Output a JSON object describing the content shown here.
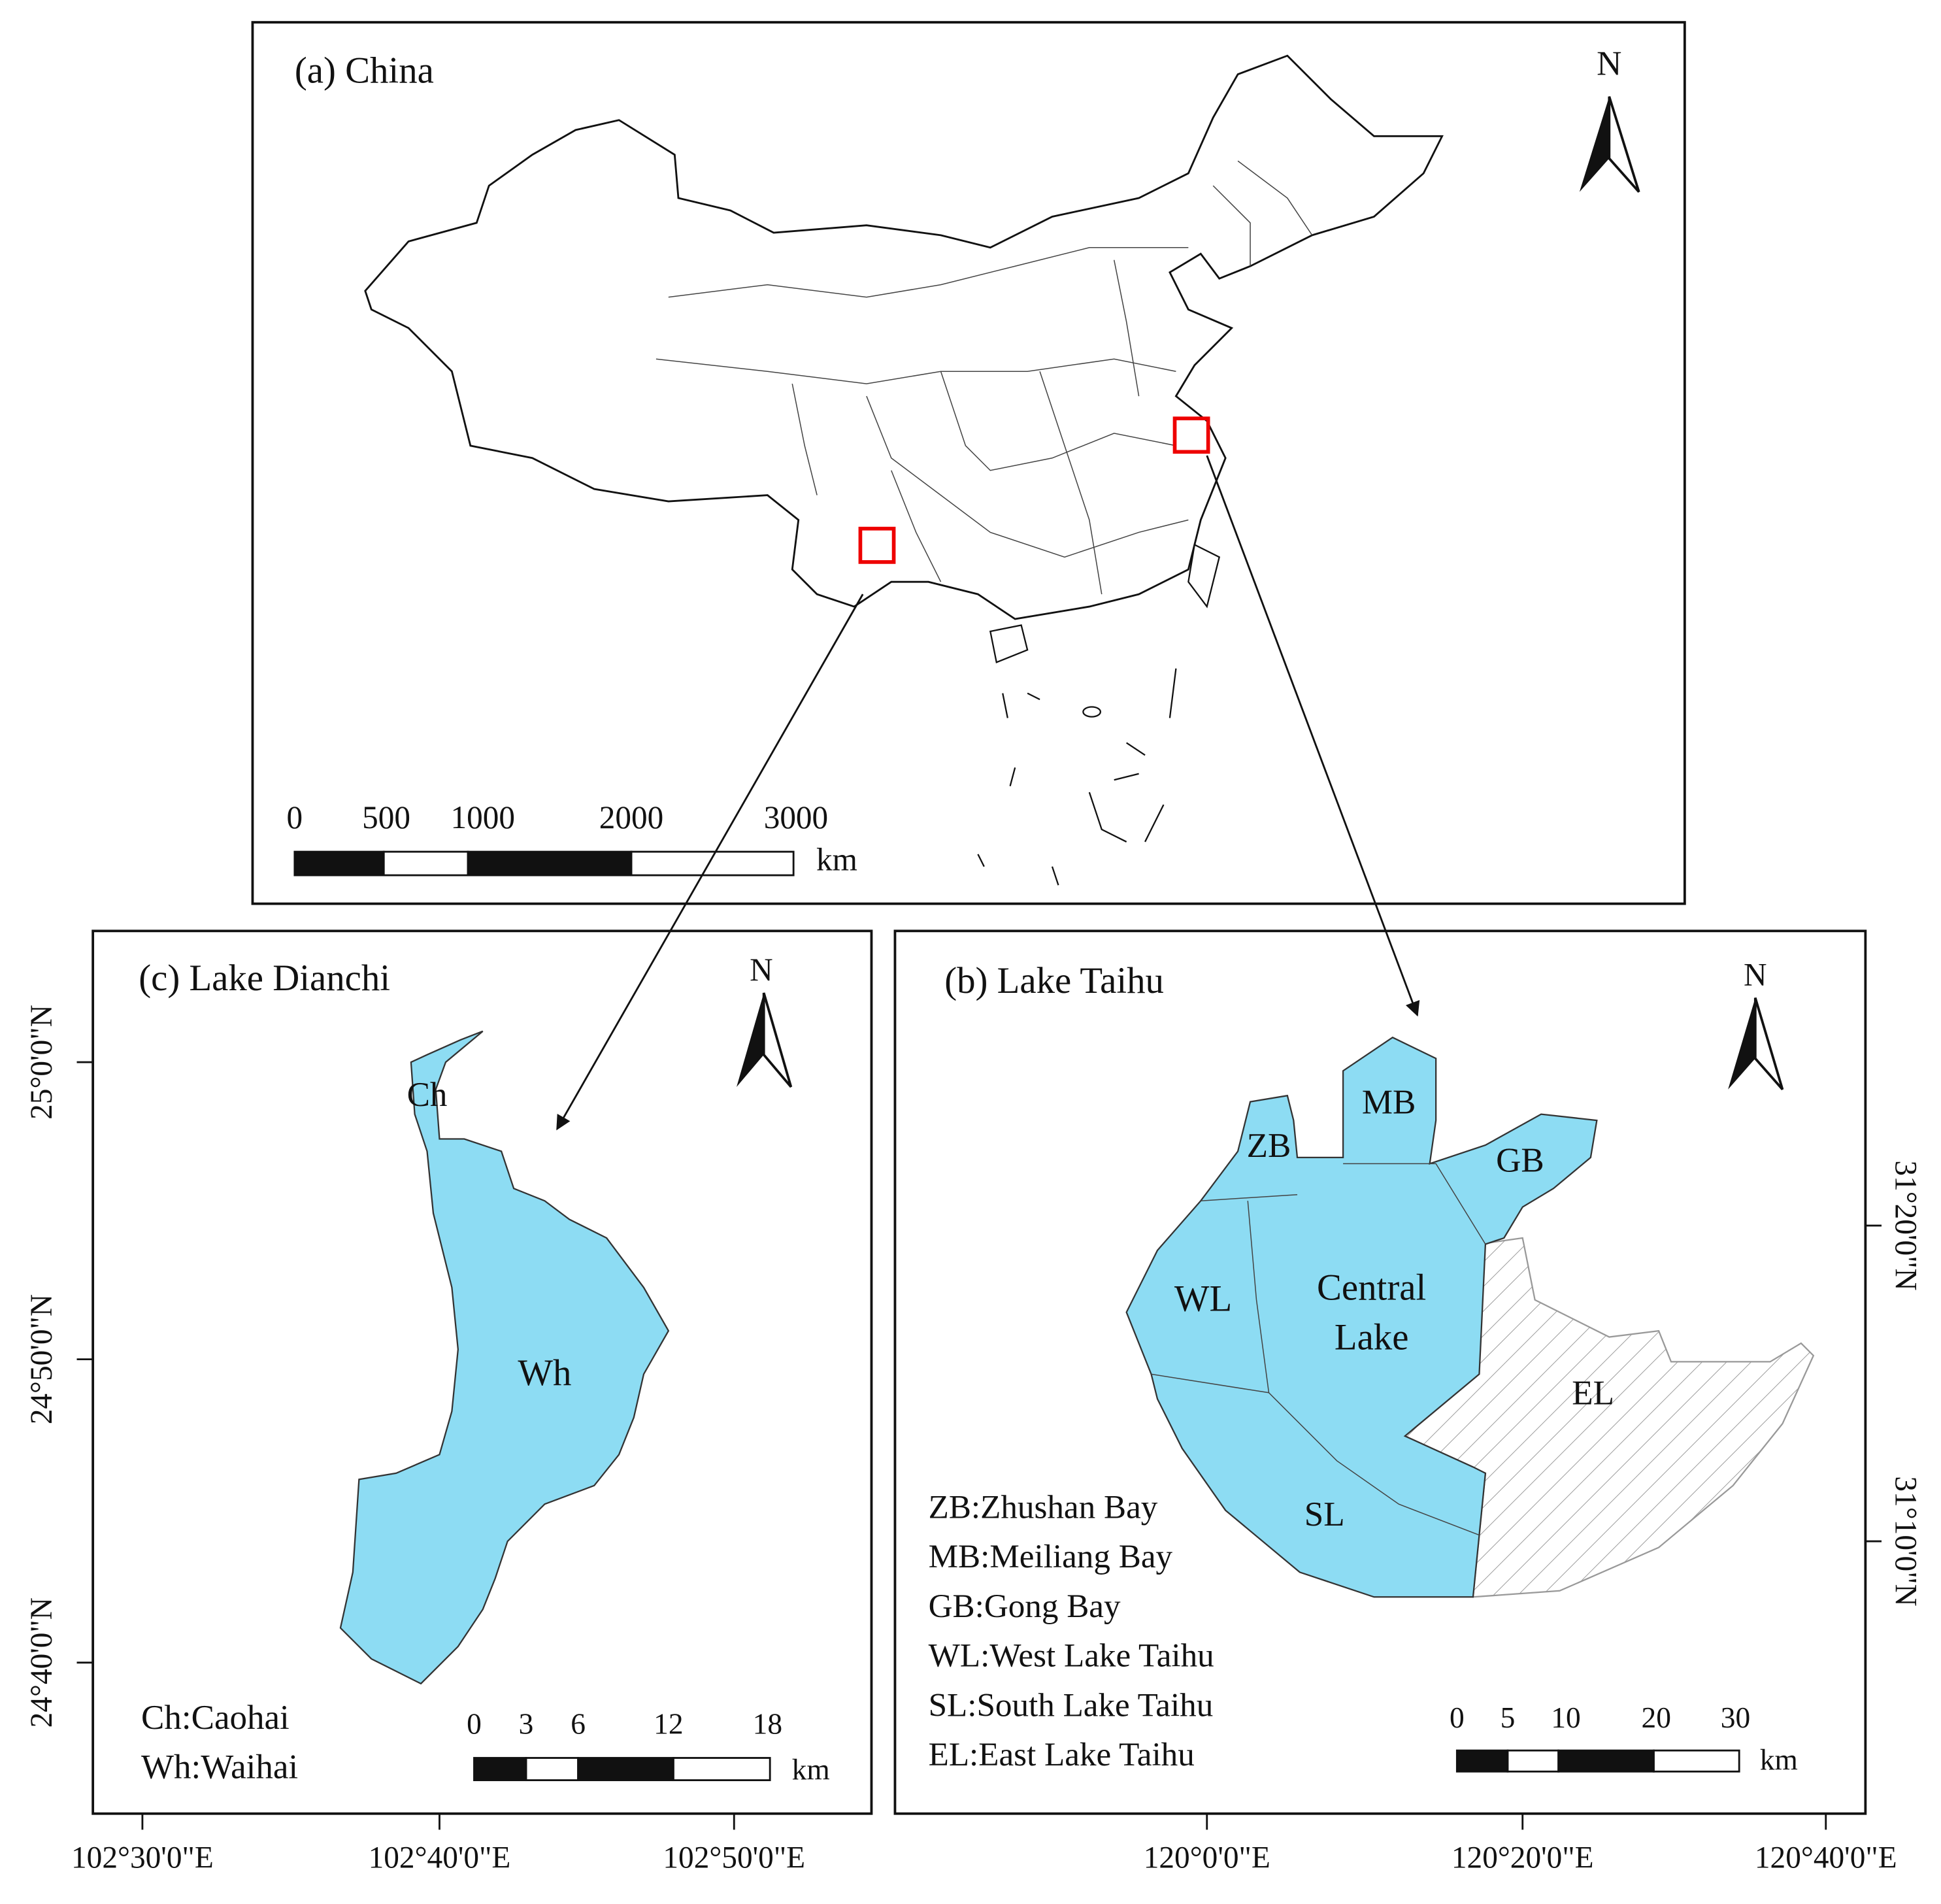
{
  "panel_a": {
    "title": "(a) China",
    "north": "N",
    "scale_labels": [
      "0",
      "500",
      "1000",
      "2000",
      "3000"
    ],
    "unit": "km"
  },
  "panel_c": {
    "title": "(c)  Lake Dianchi",
    "north": "N",
    "regions": [
      "Ch",
      "Wh"
    ],
    "legend": [
      "Ch:Caohai",
      "Wh:Waihai"
    ],
    "scale_labels": [
      "0",
      "3",
      "6",
      "12",
      "18"
    ],
    "unit": "km",
    "x_labels": [
      "102°30'0\"E",
      "102°40'0\"E",
      "102°50'0\"E"
    ],
    "y_labels": [
      "25°0'0\"N",
      "24°50'0\"N",
      "24°40'0\"N"
    ]
  },
  "panel_b": {
    "title": "(b) Lake Taihu",
    "north": "N",
    "regions": [
      "ZB",
      "MB",
      "GB",
      "WL",
      "Central",
      "Lake",
      "SL",
      "EL"
    ],
    "legend": [
      "ZB:Zhushan Bay",
      "MB:Meiliang Bay",
      "GB:Gong Bay",
      "WL:West Lake Taihu",
      "SL:South Lake Taihu",
      "EL:East Lake Taihu"
    ],
    "scale_labels": [
      "0",
      "5",
      "10",
      "20",
      "30"
    ],
    "unit": "km",
    "x_labels": [
      "120°0'0\"E",
      "120°20'0\"E",
      "120°40'0\"E"
    ],
    "y_labels": [
      "31°20'0\"N",
      "31°10'0\"N"
    ]
  }
}
